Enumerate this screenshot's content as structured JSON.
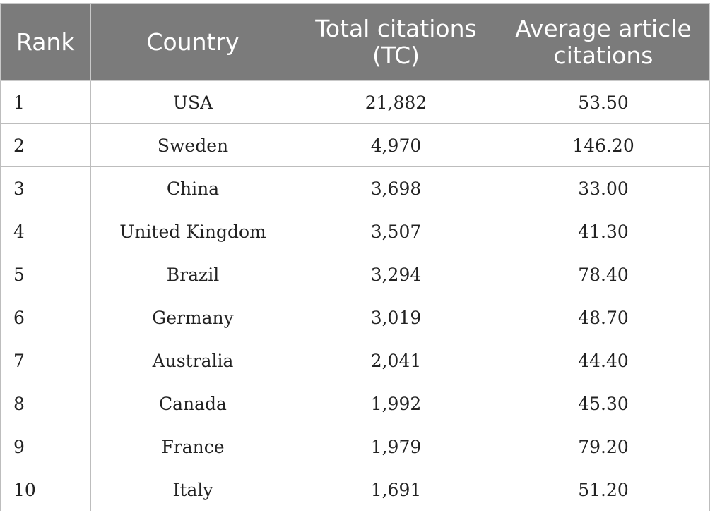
{
  "table": {
    "headers": {
      "rank": "Rank",
      "country": "Country",
      "total_citations_line1": "Total citations",
      "total_citations_line2": "(TC)",
      "avg_line1": "Average article",
      "avg_line2": "citations"
    },
    "rows": [
      {
        "rank": "1",
        "country": "USA",
        "tc": "21,882",
        "avg": "53.50"
      },
      {
        "rank": "2",
        "country": "Sweden",
        "tc": "4,970",
        "avg": "146.20"
      },
      {
        "rank": "3",
        "country": "China",
        "tc": "3,698",
        "avg": "33.00"
      },
      {
        "rank": "4",
        "country": "United Kingdom",
        "tc": "3,507",
        "avg": "41.30"
      },
      {
        "rank": "5",
        "country": "Brazil",
        "tc": "3,294",
        "avg": "78.40"
      },
      {
        "rank": "6",
        "country": "Germany",
        "tc": "3,019",
        "avg": "48.70"
      },
      {
        "rank": "7",
        "country": "Australia",
        "tc": "2,041",
        "avg": "44.40"
      },
      {
        "rank": "8",
        "country": "Canada",
        "tc": "1,992",
        "avg": "45.30"
      },
      {
        "rank": "9",
        "country": "France",
        "tc": "1,979",
        "avg": "79.20"
      },
      {
        "rank": "10",
        "country": "Italy",
        "tc": "1,691",
        "avg": "51.20"
      }
    ]
  }
}
